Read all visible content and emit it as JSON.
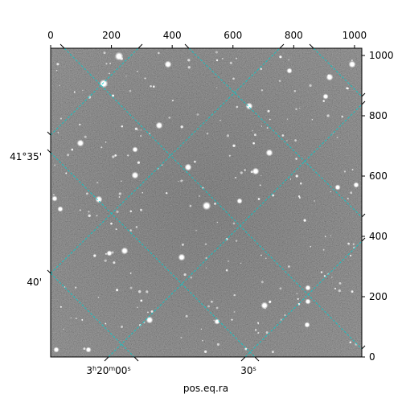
{
  "figure": {
    "xlabel": "pos.eq.ra",
    "pixel_x_ticks": [
      "0",
      "200",
      "400",
      "600",
      "800",
      "1000"
    ],
    "pixel_y_ticks": [
      "0",
      "200",
      "400",
      "600",
      "800",
      "1000"
    ],
    "ra_ticks": [
      {
        "value": "3h20m00s",
        "hours": "3",
        "minutes": "20",
        "seconds": "00",
        "sup_h": "h",
        "sup_m": "m",
        "sup_s": "s"
      },
      {
        "value": "30s",
        "seconds": "30",
        "sup_s": "s"
      }
    ],
    "dec_ticks": [
      "41°35'",
      "40'"
    ],
    "grid_color": "#00cccc",
    "image": "grayscale star field"
  }
}
